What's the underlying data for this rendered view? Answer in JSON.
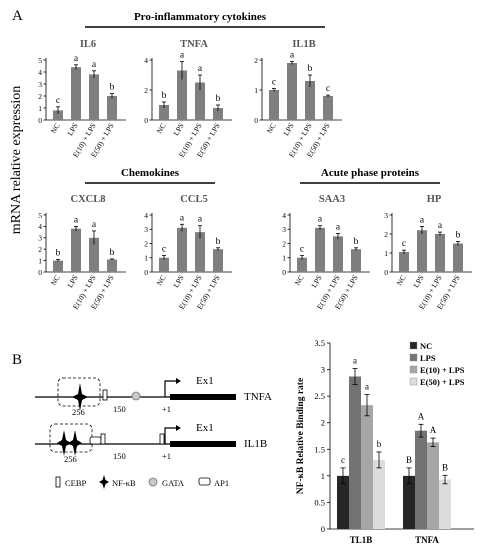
{
  "panel_a": {
    "label": "A",
    "ylabel": "mRNA relative expression",
    "groups": [
      {
        "title": "Pro-inflammatory cytokines"
      },
      {
        "title": "Chemokines"
      },
      {
        "title": "Acute phase proteins"
      }
    ],
    "conditions": [
      "NC",
      "LPS",
      "E(10) + LPS",
      "E(50) + LPS"
    ]
  },
  "panel_b": {
    "label": "B",
    "genes": [
      {
        "name": "TNFA",
        "exon": "Ex1",
        "pos_256": "256",
        "pos_150": "150",
        "pos_tss": "+1"
      },
      {
        "name": "IL1B",
        "exon": "Ex1",
        "pos_256": "256",
        "pos_150": "150",
        "pos_tss": "+1"
      }
    ],
    "legend": [
      {
        "label": "CEBP",
        "icon": "rectangle-icon"
      },
      {
        "label": "NF-κB",
        "icon": "star-icon"
      },
      {
        "label": "GATA",
        "icon": "circle-icon"
      },
      {
        "label": "AP1",
        "icon": "rounded-rectangle-icon"
      }
    ]
  },
  "chart_data": [
    {
      "type": "bar",
      "title": "IL6",
      "categories": [
        "NC",
        "LPS",
        "E(10) + LPS",
        "E(50) + LPS"
      ],
      "values": [
        0.8,
        4.4,
        3.8,
        2.0
      ],
      "errors": [
        0.3,
        0.2,
        0.3,
        0.2
      ],
      "letters": [
        "c",
        "a",
        "a",
        "b"
      ],
      "ylim": [
        0,
        5
      ],
      "yticks": [
        0,
        1,
        2,
        3,
        4,
        5
      ],
      "color": "#7f7f7f"
    },
    {
      "type": "bar",
      "title": "TNFA",
      "categories": [
        "NC",
        "LPS",
        "E(10) + LPS",
        "E(50) + LPS"
      ],
      "values": [
        1.0,
        3.3,
        2.5,
        0.8
      ],
      "errors": [
        0.2,
        0.6,
        0.5,
        0.2
      ],
      "letters": [
        "b",
        "a",
        "a",
        "b"
      ],
      "ylim": [
        0,
        4
      ],
      "yticks": [
        0,
        2,
        4
      ],
      "color": "#7f7f7f"
    },
    {
      "type": "bar",
      "title": "IL1B",
      "categories": [
        "NC",
        "LPS",
        "E(10) + LPS",
        "E(50) + LPS"
      ],
      "values": [
        1.0,
        1.9,
        1.3,
        0.8
      ],
      "errors": [
        0.05,
        0.05,
        0.2,
        0.03
      ],
      "letters": [
        "c",
        "a",
        "b",
        "c"
      ],
      "ylim": [
        0,
        2
      ],
      "yticks": [
        0,
        1,
        2
      ],
      "color": "#7f7f7f"
    },
    {
      "type": "bar",
      "title": "CXCL8",
      "categories": [
        "NC",
        "LPS",
        "E(10) + LPS",
        "E(50) + LPS"
      ],
      "values": [
        1.0,
        3.8,
        3.0,
        1.1
      ],
      "errors": [
        0.1,
        0.2,
        0.6,
        0.05
      ],
      "letters": [
        "b",
        "a",
        "a",
        "b"
      ],
      "ylim": [
        0,
        5
      ],
      "yticks": [
        0,
        1,
        2,
        3,
        4,
        5
      ],
      "color": "#7f7f7f"
    },
    {
      "type": "bar",
      "title": "CCL5",
      "categories": [
        "NC",
        "LPS",
        "E(10) + LPS",
        "E(50) + LPS"
      ],
      "values": [
        1.0,
        3.1,
        2.8,
        1.6
      ],
      "errors": [
        0.15,
        0.25,
        0.45,
        0.1
      ],
      "letters": [
        "c",
        "a",
        "a",
        "b"
      ],
      "ylim": [
        0,
        4
      ],
      "yticks": [
        0,
        1,
        2,
        3,
        4
      ],
      "color": "#7f7f7f"
    },
    {
      "type": "bar",
      "title": "SAA3",
      "categories": [
        "NC",
        "LPS",
        "E(10) + LPS",
        "E(50) + LPS"
      ],
      "values": [
        1.0,
        3.1,
        2.5,
        1.6
      ],
      "errors": [
        0.15,
        0.15,
        0.2,
        0.1
      ],
      "letters": [
        "c",
        "a",
        "a",
        "b"
      ],
      "ylim": [
        0,
        4
      ],
      "yticks": [
        0,
        1,
        2,
        3,
        4
      ],
      "color": "#7f7f7f"
    },
    {
      "type": "bar",
      "title": "HP",
      "categories": [
        "NC",
        "LPS",
        "E(10) + LPS",
        "E(50) + LPS"
      ],
      "values": [
        1.05,
        2.2,
        2.0,
        1.5
      ],
      "errors": [
        0.1,
        0.2,
        0.1,
        0.1
      ],
      "letters": [
        "c",
        "a",
        "a",
        "b"
      ],
      "ylim": [
        0,
        3
      ],
      "yticks": [
        0,
        1,
        2,
        3
      ],
      "color": "#7f7f7f"
    },
    {
      "type": "bar",
      "ylabel": "NF-κB Relative Binding rate",
      "categories": [
        "TL1B",
        "TNFA"
      ],
      "ylim": [
        0,
        3.5
      ],
      "yticks": [
        0,
        0.5,
        1,
        1.5,
        2,
        2.5,
        3,
        3.5
      ],
      "series": [
        {
          "name": "NC",
          "values": [
            1.0,
            1.0
          ],
          "errors": [
            0.15,
            0.15
          ],
          "letters": [
            "c",
            "B"
          ],
          "color": "#262626"
        },
        {
          "name": "LPS",
          "values": [
            2.87,
            1.85
          ],
          "errors": [
            0.15,
            0.12
          ],
          "letters": [
            "a",
            "A"
          ],
          "color": "#737373"
        },
        {
          "name": "E(10) + LPS",
          "values": [
            2.33,
            1.63
          ],
          "errors": [
            0.2,
            0.08
          ],
          "letters": [
            "a",
            "A"
          ],
          "color": "#a6a6a6"
        },
        {
          "name": "E(50) + LPS",
          "values": [
            1.3,
            0.93
          ],
          "errors": [
            0.15,
            0.08
          ],
          "letters": [
            "b",
            "B"
          ],
          "color": "#dcdcdc"
        }
      ],
      "legend_position": "top-right"
    }
  ]
}
